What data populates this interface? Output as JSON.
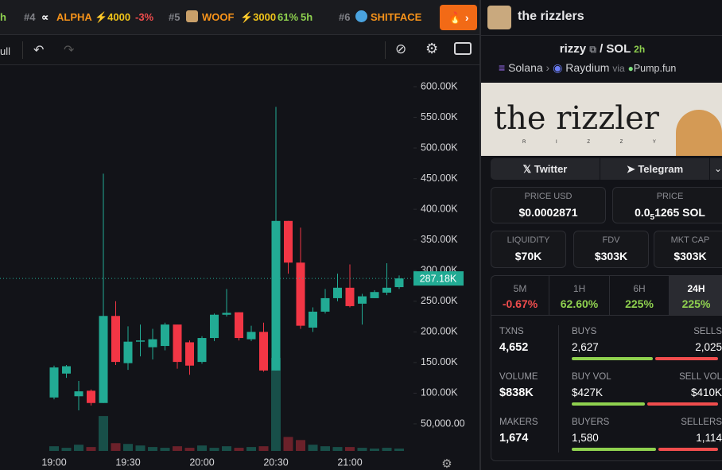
{
  "ticker_bar": {
    "lead": "h",
    "items": [
      {
        "rank": "#4",
        "name": "ALPHA",
        "boost": "⚡4000",
        "change": "-3%"
      },
      {
        "rank": "#5",
        "name": "WOOF",
        "boost": "⚡3000",
        "change": "61%",
        "age": "5h"
      },
      {
        "rank": "#6",
        "name": "SHITFACE"
      }
    ]
  },
  "header": {
    "title": "the rizzlers"
  },
  "toolbar": {
    "label": "ull"
  },
  "chart_data": {
    "type": "candlestick",
    "categories": [
      "19:00",
      null,
      null,
      null,
      null,
      null,
      "19:30",
      null,
      null,
      null,
      null,
      null,
      "20:00",
      null,
      null,
      null,
      null,
      null,
      "20:30",
      null,
      null,
      null,
      null,
      null,
      "21:00",
      null,
      null,
      null,
      null
    ],
    "open": [
      93000,
      132000,
      95000,
      104000,
      84000,
      226000,
      149000,
      184000,
      175000,
      177000,
      212000,
      183000,
      151000,
      190000,
      228000,
      232000,
      188000,
      200000,
      137000,
      381000,
      313000,
      207000,
      233000,
      255000,
      272000,
      246000,
      255000,
      264000,
      273000
    ],
    "high": [
      145000,
      146000,
      120000,
      106000,
      458000,
      250000,
      209000,
      212000,
      205000,
      215000,
      212000,
      186000,
      193000,
      230000,
      270000,
      232000,
      210000,
      215000,
      567000,
      381000,
      370000,
      240000,
      270000,
      295000,
      310000,
      262000,
      268000,
      312000,
      292000
    ],
    "low": [
      90000,
      125000,
      72000,
      80000,
      84000,
      146000,
      138000,
      160000,
      155000,
      170000,
      140000,
      130000,
      148000,
      185000,
      225000,
      186000,
      185000,
      135000,
      137000,
      295000,
      205000,
      200000,
      230000,
      250000,
      240000,
      212000,
      255000,
      260000,
      270000
    ],
    "close": [
      142000,
      144000,
      103000,
      84000,
      226000,
      151000,
      184000,
      186000,
      188000,
      212000,
      151000,
      145000,
      190000,
      228000,
      231000,
      190000,
      200000,
      137000,
      381000,
      313000,
      210000,
      233000,
      255000,
      272000,
      242000,
      258000,
      265000,
      272000,
      287180
    ],
    "volume": [
      6,
      4,
      8,
      5,
      45,
      10,
      9,
      7,
      5,
      4,
      6,
      4,
      7,
      4,
      6,
      4,
      5,
      6,
      120,
      18,
      14,
      8,
      6,
      5,
      5,
      4,
      3,
      4,
      3
    ],
    "up_color": "#22ab94",
    "down_color": "#f23645",
    "ylim": [
      0,
      625000
    ],
    "yticks": [
      {
        "value": 50000,
        "label": "50,000.00"
      },
      {
        "value": 100000,
        "label": "100.00K"
      },
      {
        "value": 150000,
        "label": "150.00K"
      },
      {
        "value": 200000,
        "label": "200.00K"
      },
      {
        "value": 250000,
        "label": "250.00K"
      },
      {
        "value": 300000,
        "label": "300.00K"
      },
      {
        "value": 350000,
        "label": "350.00K"
      },
      {
        "value": 400000,
        "label": "400.00K"
      },
      {
        "value": 450000,
        "label": "450.00K"
      },
      {
        "value": 500000,
        "label": "500.00K"
      },
      {
        "value": 550000,
        "label": "550.00K"
      },
      {
        "value": 600000,
        "label": "600.00K"
      }
    ],
    "last_price": {
      "value": 287180,
      "label": "287.18K"
    }
  },
  "pair": {
    "token": "rizzy",
    "sep": "/",
    "quote": "SOL",
    "age": "2h",
    "chain": "Solana",
    "dex": "Raydium",
    "via": "via",
    "launchpad": "Pump.fun"
  },
  "banner": {
    "title": "the rizzler",
    "subtitle": "R I Z Z Y"
  },
  "links": [
    "Twitter",
    "Telegram"
  ],
  "price": {
    "usd_label": "PRICE USD",
    "usd": "$0.0002871",
    "sol_label": "PRICE",
    "sol_prefix": "0.0",
    "sol_zeros": "5",
    "sol_rest": "1265 SOL"
  },
  "metrics": [
    {
      "label": "LIQUIDITY",
      "value": "$70K"
    },
    {
      "label": "FDV",
      "value": "$303K"
    },
    {
      "label": "MKT CAP",
      "value": "$303K"
    }
  ],
  "periods": [
    {
      "label": "5M",
      "change": "-0.67%"
    },
    {
      "label": "1H",
      "change": "62.60%"
    },
    {
      "label": "6H",
      "change": "225%"
    },
    {
      "label": "24H",
      "change": "225%"
    }
  ],
  "stats": {
    "txns": {
      "label": "TXNS",
      "value": "4,652"
    },
    "volume": {
      "label": "VOLUME",
      "value": "$838K"
    },
    "makers": {
      "label": "MAKERS",
      "value": "1,674"
    },
    "buys": {
      "label": "BUYS",
      "value": 2627,
      "value_label": "2,627"
    },
    "sells": {
      "label": "SELLS",
      "value": 2025,
      "value_label": "2,025"
    },
    "buy_vol": {
      "label": "BUY VOL",
      "value": 427000,
      "value_label": "$427K"
    },
    "sell_vol": {
      "label": "SELL VOL",
      "value": 410000,
      "value_label": "$410K"
    },
    "buyers": {
      "label": "BUYERS",
      "value": 1580,
      "value_label": "1,580"
    },
    "sellers": {
      "label": "SELLERS",
      "value": 1114,
      "value_label": "1,114"
    }
  }
}
